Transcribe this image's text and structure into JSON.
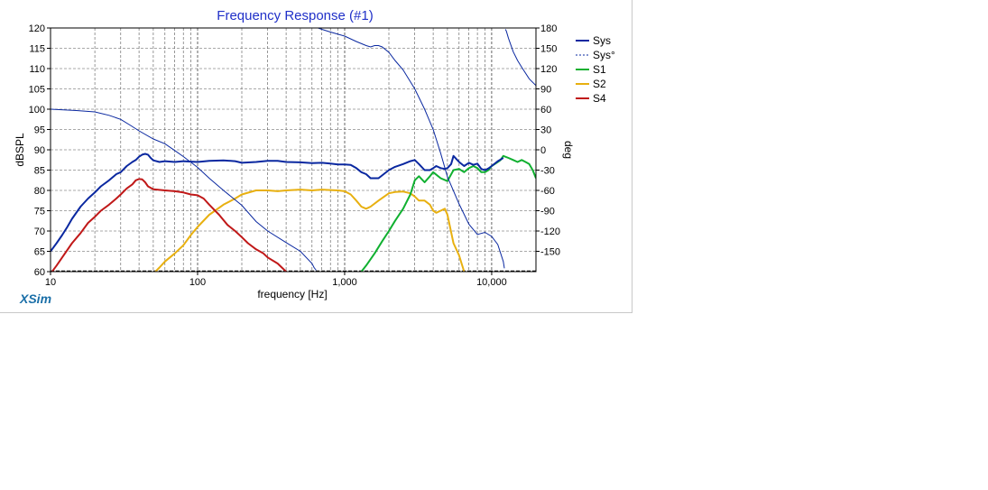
{
  "brand": "XSim",
  "chart_data": {
    "type": "line",
    "title": "Frequency Response (#1)",
    "xlabel": "frequency [Hz]",
    "ylabel": "dBSPL",
    "y2label": "deg",
    "xscale": "log",
    "xlim": [
      10,
      20000
    ],
    "ylim": [
      60,
      120
    ],
    "y2lim": [
      -180,
      180
    ],
    "xticks": [
      10,
      100,
      1000,
      10000
    ],
    "xtick_labels": [
      "10",
      "100",
      "1,000",
      "10,000"
    ],
    "yticks": [
      60,
      65,
      70,
      75,
      80,
      85,
      90,
      95,
      100,
      105,
      110,
      115,
      120
    ],
    "y2ticks": [
      -150,
      -120,
      -90,
      -60,
      -30,
      0,
      30,
      60,
      90,
      120,
      150,
      180
    ],
    "grid": true,
    "legend_position": "right",
    "series": [
      {
        "name": "Sys",
        "axis": "left",
        "color": "#0a28a0",
        "width": 2,
        "x": [
          10,
          11,
          12,
          13,
          14,
          16,
          18,
          20,
          22,
          25,
          28,
          30,
          33,
          36,
          38,
          40,
          42,
          44,
          46,
          48,
          50,
          55,
          60,
          70,
          80,
          90,
          100,
          120,
          150,
          180,
          200,
          250,
          300,
          350,
          400,
          500,
          600,
          700,
          800,
          900,
          1000,
          1100,
          1200,
          1300,
          1400,
          1500,
          1700,
          2000,
          2200,
          2500,
          2800,
          3000,
          3200,
          3500,
          3800,
          4000,
          4200,
          4500,
          4800,
          5000,
          5300,
          5500,
          6000,
          6500,
          7000,
          7500,
          8000,
          8500,
          9000,
          9500,
          10000,
          11000,
          12000
        ],
        "y": [
          65,
          67,
          69,
          71,
          73,
          76,
          78,
          79.5,
          81,
          82.5,
          84,
          84.5,
          86,
          87,
          87.5,
          88.3,
          88.8,
          89,
          88.8,
          88,
          87.4,
          87,
          87.2,
          87,
          87.2,
          87.1,
          87,
          87.3,
          87.4,
          87.2,
          86.8,
          87,
          87.3,
          87.3,
          87,
          86.9,
          86.7,
          86.8,
          86.6,
          86.4,
          86.4,
          86.3,
          85.5,
          84.5,
          84,
          83,
          83,
          85,
          85.8,
          86.5,
          87.2,
          87.5,
          86.5,
          85,
          85,
          85.5,
          86,
          85.5,
          85.3,
          85.5,
          86.5,
          88.5,
          87,
          86,
          86.8,
          86.3,
          86.6,
          85.3,
          85,
          85.4,
          86,
          87.2,
          88
        ]
      },
      {
        "name": "Sys°",
        "axis": "right",
        "color": "#0a28a0",
        "width": 1,
        "dashed": true,
        "x": [
          10,
          15,
          20,
          25,
          30,
          35,
          40,
          50,
          60,
          70,
          80,
          100,
          120,
          150,
          200,
          250,
          300,
          400,
          500,
          600,
          620,
          640,
          660,
          700,
          800,
          1000,
          1200,
          1400,
          1500,
          1600,
          1700,
          1800,
          2000,
          2200,
          2500,
          3000,
          3500,
          4000,
          4500,
          5000,
          6000,
          7000,
          8000,
          9000,
          10000,
          11000,
          12000,
          12200,
          12400,
          12600,
          13000,
          14000,
          15000,
          16000,
          18000,
          20000
        ],
        "y": [
          60,
          58,
          56,
          51,
          45,
          36,
          28,
          16,
          9,
          -1,
          -10,
          -26,
          -42,
          -60,
          -82,
          -106,
          -120,
          -137,
          -150,
          -168,
          -174,
          -178,
          180,
          178,
          174,
          168,
          160,
          154,
          152,
          154,
          154,
          152,
          144,
          132,
          118,
          90,
          60,
          30,
          -5,
          -40,
          -80,
          -110,
          -125,
          -122,
          -128,
          -140,
          -165,
          -175,
          178,
          175,
          165,
          145,
          132,
          122,
          105,
          95
        ]
      },
      {
        "name": "S1",
        "axis": "left",
        "color": "#10b030",
        "width": 2,
        "x": [
          1300,
          1400,
          1600,
          1800,
          2000,
          2200,
          2500,
          2800,
          3000,
          3200,
          3500,
          3800,
          4000,
          4500,
          5000,
          5500,
          6000,
          6500,
          7000,
          7500,
          8000,
          8500,
          9000,
          9500,
          10000,
          11000,
          11500,
          12000,
          13000,
          14000,
          15000,
          16000,
          17000,
          18000,
          19000,
          20000
        ],
        "y": [
          60,
          61.5,
          64.5,
          67.5,
          70,
          72.5,
          75.5,
          79,
          82.5,
          83.5,
          82,
          83.5,
          84.5,
          83,
          82.3,
          85,
          85.3,
          84.5,
          85.5,
          86,
          85.5,
          84.5,
          84.5,
          85,
          86,
          87,
          87.5,
          88.5,
          88,
          87.5,
          87,
          87.5,
          87,
          86.5,
          85,
          83
        ]
      },
      {
        "name": "S2",
        "axis": "left",
        "color": "#e8b010",
        "width": 2,
        "x": [
          50,
          55,
          60,
          70,
          80,
          90,
          100,
          120,
          150,
          180,
          200,
          250,
          300,
          350,
          400,
          500,
          600,
          700,
          800,
          900,
          1000,
          1100,
          1200,
          1300,
          1400,
          1500,
          1700,
          2000,
          2200,
          2500,
          2800,
          3000,
          3200,
          3500,
          3800,
          4000,
          4200,
          4500,
          4800,
          5000,
          5500,
          6000,
          6500,
          6800
        ],
        "y": [
          59.5,
          61,
          62.5,
          64.5,
          66.5,
          69,
          71,
          74,
          76.5,
          78,
          79,
          80,
          80,
          79.8,
          80,
          80.2,
          80,
          80.2,
          80.1,
          80,
          79.8,
          79,
          77.5,
          76,
          75.5,
          76,
          77.5,
          79.3,
          79.6,
          79.7,
          79.3,
          78.5,
          77.5,
          77.5,
          76.5,
          75,
          74.5,
          75,
          75.5,
          74,
          67,
          64,
          60,
          58
        ]
      },
      {
        "name": "S4",
        "axis": "left",
        "color": "#c01818",
        "width": 2,
        "x": [
          10,
          11,
          12,
          14,
          16,
          18,
          20,
          22,
          25,
          28,
          30,
          33,
          36,
          38,
          40,
          42,
          44,
          46,
          50,
          60,
          70,
          80,
          90,
          100,
          110,
          120,
          140,
          160,
          180,
          200,
          220,
          250,
          280,
          300,
          350,
          400,
          420
        ],
        "y": [
          59.5,
          61.5,
          63.5,
          67,
          69.5,
          72,
          73.5,
          75,
          76.5,
          78,
          79,
          80.5,
          81.5,
          82.5,
          82.8,
          82.7,
          82,
          81,
          80.3,
          80,
          79.8,
          79.5,
          79,
          78.8,
          78,
          76.5,
          74,
          71.5,
          70,
          68.5,
          67,
          65.5,
          64.5,
          63.5,
          62,
          60,
          59
        ]
      }
    ]
  }
}
